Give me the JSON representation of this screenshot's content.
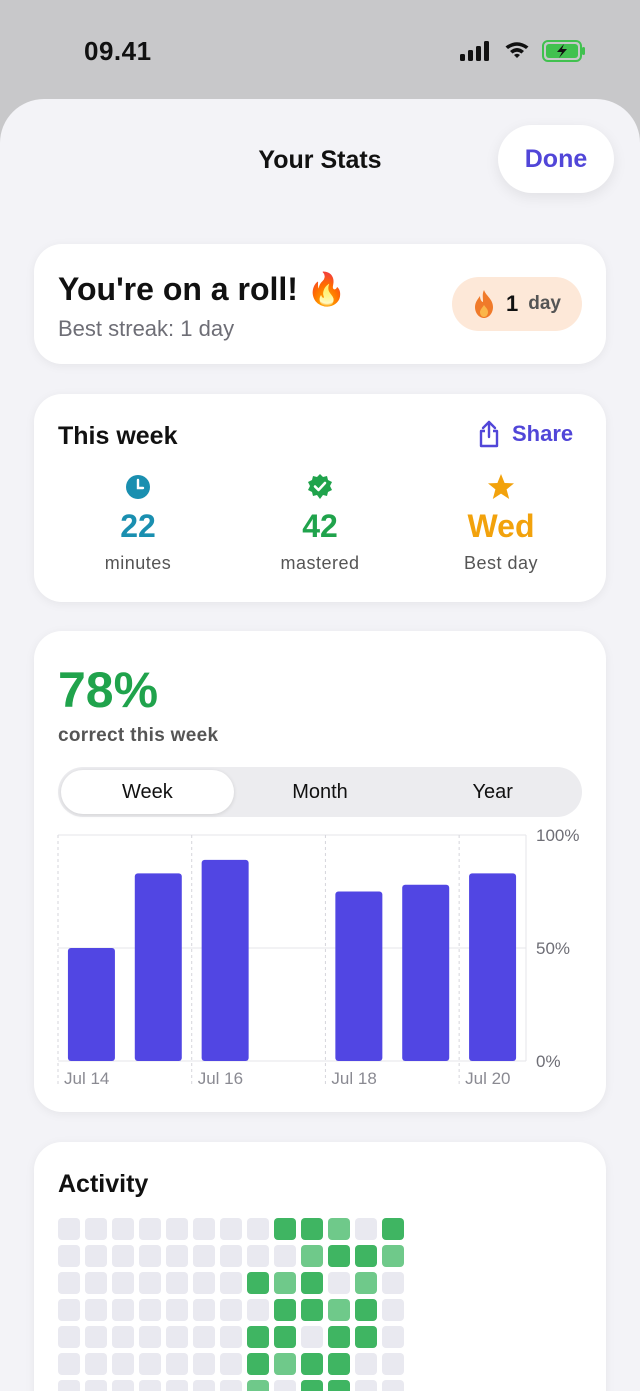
{
  "status_bar": {
    "time": "09.41"
  },
  "header": {
    "title": "Your Stats",
    "done_label": "Done"
  },
  "streak": {
    "title": "You're on a roll! 🔥",
    "subtitle": "Best streak: 1 day",
    "badge_number": "1",
    "badge_unit": "day"
  },
  "this_week": {
    "title": "This week",
    "share_label": "Share",
    "stats": [
      {
        "value": "22",
        "label": "minutes",
        "color": "#1a8fb0",
        "icon": "clock-icon"
      },
      {
        "value": "42",
        "label": "mastered",
        "color": "#20a34c",
        "icon": "verified-badge-icon"
      },
      {
        "value": "Wed",
        "label": "Best day",
        "color": "#f2a20c",
        "icon": "star-icon"
      }
    ]
  },
  "accuracy": {
    "percent": "78%",
    "subtitle": "correct this week",
    "segments": [
      "Week",
      "Month",
      "Year"
    ],
    "selected_segment": "Week"
  },
  "chart_data": {
    "type": "bar",
    "categories": [
      "Jul 14",
      "Jul 15",
      "Jul 16",
      "Jul 17",
      "Jul 18",
      "Jul 19",
      "Jul 20"
    ],
    "values": [
      50,
      83,
      89,
      0,
      75,
      78,
      83
    ],
    "x_tick_labels": [
      "Jul 14",
      "Jul 16",
      "Jul 18",
      "Jul 20"
    ],
    "y_tick_labels": [
      "100%",
      "50%",
      "0%"
    ],
    "ylim": [
      0,
      100
    ],
    "bar_color": "#5146e3",
    "grid": true
  },
  "activity": {
    "title": "Activity",
    "rows": [
      [
        0,
        0,
        0,
        0,
        0,
        0,
        0,
        0,
        2,
        2,
        1,
        0,
        2
      ],
      [
        0,
        0,
        0,
        0,
        0,
        0,
        0,
        0,
        0,
        1,
        2,
        2,
        1
      ],
      [
        0,
        0,
        0,
        0,
        0,
        0,
        0,
        2,
        1,
        2,
        0,
        1,
        0
      ],
      [
        0,
        0,
        0,
        0,
        0,
        0,
        0,
        0,
        2,
        2,
        1,
        2,
        0
      ],
      [
        0,
        0,
        0,
        0,
        0,
        0,
        0,
        2,
        2,
        0,
        2,
        2,
        0
      ],
      [
        0,
        0,
        0,
        0,
        0,
        0,
        0,
        2,
        1,
        2,
        2,
        0,
        0
      ],
      [
        0,
        0,
        0,
        0,
        0,
        0,
        0,
        1,
        0,
        2,
        2,
        0,
        0
      ]
    ]
  }
}
